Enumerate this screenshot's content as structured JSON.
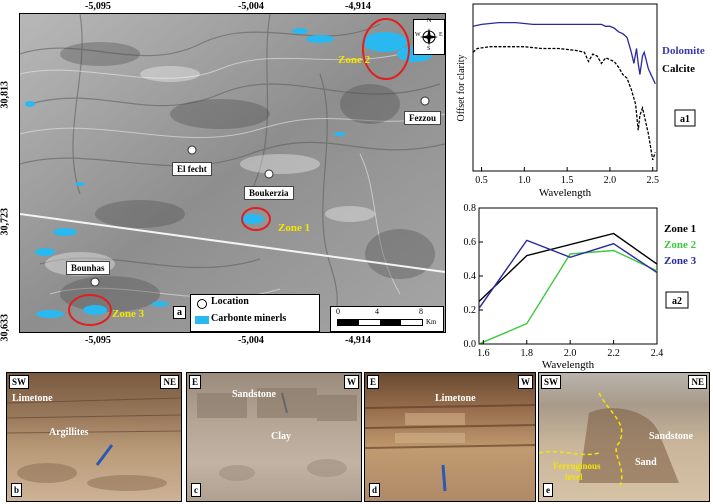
{
  "map": {
    "top_ticks": [
      "-5,095",
      "-5,004",
      "-4,914"
    ],
    "bottom_ticks": [
      "-5,095",
      "-5,004",
      "-4,914"
    ],
    "left_ticks": [
      "30,813",
      "30,723",
      "30,633"
    ],
    "locations": {
      "el_fecht": "El fecht",
      "boukerzia": "Boukerzia",
      "bounhas": "Bounhas",
      "fezzou": "Fezzou"
    },
    "zones": {
      "z1": "Zone 1",
      "z2": "Zone 2",
      "z3": "Zone 3"
    },
    "legend": {
      "location": "Location",
      "carbonate": "Carbonte minerls"
    },
    "scale": {
      "t0": "0",
      "t4": "4",
      "t8": "8",
      "unit": "Km"
    },
    "compass": {
      "n": "N",
      "s": "S",
      "e": "E",
      "w": "W"
    },
    "panel_letter": "a",
    "colors": {
      "carbonate": "#2ab8f0",
      "zone_circle": "#e02020",
      "zone_text": "#f2e600"
    }
  },
  "chart_data": [
    {
      "type": "line",
      "panel": "a1",
      "xlabel": "Wavelength",
      "ylabel": "Offset for clarity",
      "xlim": [
        0.4,
        2.55
      ],
      "x_ticks": [
        "0.5",
        "1.0",
        "1.5",
        "2.0",
        "2.5"
      ],
      "series": [
        {
          "name": "Dolomite",
          "color": "#2a2aa0",
          "x": [
            0.4,
            0.5,
            0.7,
            0.9,
            1.1,
            1.3,
            1.5,
            1.7,
            1.8,
            1.9,
            1.95,
            2.0,
            2.05,
            2.1,
            2.15,
            2.2,
            2.25,
            2.28,
            2.31,
            2.33,
            2.35,
            2.38,
            2.4,
            2.45,
            2.5,
            2.53
          ],
          "y": [
            0.78,
            0.79,
            0.8,
            0.8,
            0.79,
            0.79,
            0.79,
            0.79,
            0.79,
            0.79,
            0.78,
            0.78,
            0.77,
            0.75,
            0.74,
            0.72,
            0.64,
            0.58,
            0.66,
            0.58,
            0.52,
            0.62,
            0.64,
            0.55,
            0.5,
            0.47
          ]
        },
        {
          "name": "Calcite",
          "color": "#000000",
          "dash": true,
          "x": [
            0.4,
            0.45,
            0.6,
            0.8,
            1.0,
            1.2,
            1.4,
            1.6,
            1.7,
            1.75,
            1.8,
            1.85,
            1.9,
            1.95,
            2.0,
            2.05,
            2.1,
            2.15,
            2.2,
            2.25,
            2.3,
            2.33,
            2.35,
            2.38,
            2.4,
            2.45,
            2.5,
            2.53
          ],
          "y": [
            0.64,
            0.66,
            0.67,
            0.67,
            0.67,
            0.66,
            0.66,
            0.65,
            0.64,
            0.59,
            0.63,
            0.62,
            0.58,
            0.61,
            0.6,
            0.59,
            0.56,
            0.52,
            0.5,
            0.44,
            0.36,
            0.22,
            0.3,
            0.34,
            0.3,
            0.2,
            0.06,
            0.1
          ]
        }
      ]
    },
    {
      "type": "line",
      "panel": "a2",
      "xlabel": "Wavelength",
      "ylabel": "",
      "xlim": [
        1.58,
        2.4
      ],
      "ylim": [
        0.0,
        0.8
      ],
      "x_ticks": [
        "1.6",
        "1.8",
        "2.0",
        "2.2",
        "2.4"
      ],
      "y_ticks": [
        "0.0",
        "0.2",
        "0.4",
        "0.6",
        "0.8"
      ],
      "series": [
        {
          "name": "Zone 1",
          "color": "#000000",
          "x": [
            1.58,
            1.8,
            2.2,
            2.4
          ],
          "y": [
            0.25,
            0.52,
            0.65,
            0.47
          ]
        },
        {
          "name": "Zone 2",
          "color": "#3cc83c",
          "x": [
            1.58,
            1.8,
            2.0,
            2.2,
            2.4
          ],
          "y": [
            0.0,
            0.12,
            0.53,
            0.55,
            0.43
          ]
        },
        {
          "name": "Zone 3",
          "color": "#2a2aa0",
          "x": [
            1.58,
            1.8,
            2.0,
            2.2,
            2.4
          ],
          "y": [
            0.21,
            0.61,
            0.51,
            0.59,
            0.42
          ]
        }
      ]
    }
  ],
  "photos": {
    "b": {
      "left": "SW",
      "right": "NE",
      "t1": "Limetone",
      "t2": "Argillites",
      "letter": "b"
    },
    "c": {
      "left": "E",
      "right": "W",
      "t1": "Sandstone",
      "t2": "Clay",
      "letter": "c"
    },
    "d": {
      "left": "E",
      "right": "W",
      "t1": "Limetone",
      "letter": "d"
    },
    "e": {
      "left": "SW",
      "right": "NE",
      "t1": "Sandstone",
      "t2": "Sand",
      "t3a": "Ferruginous",
      "t3b": "level",
      "letter": "e"
    }
  }
}
